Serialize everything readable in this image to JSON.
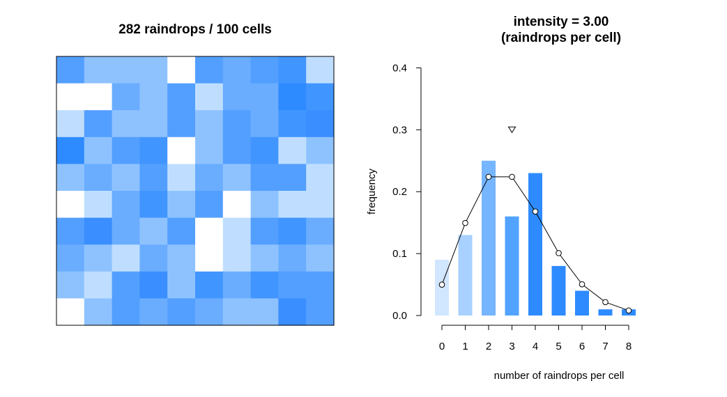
{
  "chart_data": [
    {
      "type": "heatmap",
      "title": "282 raindrops / 100 cells",
      "rows": 10,
      "cols": 10,
      "legend": "none",
      "palette": {
        "0": "#FFFFFF",
        "1": "#BFDEFF",
        "2": "#8EC2FF",
        "3": "#6AADFF",
        "4": "#539FFF",
        "5": "#4195FF",
        "6": "#3A8EFF",
        "7": "#2E8BFF",
        "8": "#2E8BFF"
      },
      "grid_counts": [
        [
          4,
          2,
          2,
          2,
          0,
          4,
          3,
          4,
          5,
          1
        ],
        [
          0,
          0,
          3,
          2,
          4,
          1,
          3,
          3,
          7,
          5
        ],
        [
          1,
          4,
          2,
          2,
          4,
          2,
          4,
          3,
          5,
          6
        ],
        [
          7,
          2,
          4,
          5,
          0,
          2,
          4,
          5,
          1,
          2
        ],
        [
          2,
          3,
          2,
          4,
          1,
          3,
          2,
          4,
          4,
          1
        ],
        [
          0,
          1,
          3,
          5,
          2,
          4,
          0,
          2,
          1,
          1
        ],
        [
          4,
          6,
          3,
          2,
          4,
          0,
          1,
          4,
          5,
          3
        ],
        [
          3,
          2,
          1,
          3,
          2,
          0,
          1,
          2,
          3,
          2
        ],
        [
          2,
          1,
          4,
          6,
          2,
          5,
          3,
          5,
          4,
          4
        ],
        [
          0,
          2,
          4,
          3,
          4,
          3,
          2,
          2,
          6,
          4
        ]
      ]
    },
    {
      "type": "bar",
      "title_line1": "intensity = 3.00",
      "title_line2": "(raindrops per cell)",
      "xlabel": "number of raindrops per cell",
      "ylabel": "frequency",
      "categories": [
        0,
        1,
        2,
        3,
        4,
        5,
        6,
        7,
        8
      ],
      "ylim": [
        0,
        0.4
      ],
      "yticks": [
        "0.0",
        "0.1",
        "0.2",
        "0.3",
        "0.4"
      ],
      "grid": false,
      "legend": "none",
      "series": [
        {
          "values": [
            0.09,
            0.13,
            0.25,
            0.16,
            0.23,
            0.08,
            0.04,
            0.01,
            0.01
          ],
          "colors": [
            "#D1E6FF",
            "#A9D1FF",
            "#76B5FF",
            "#52A3FF",
            "#2E8BFF",
            "#2E8BFF",
            "#2E8BFF",
            "#2E8BFF",
            "#2E8BFF"
          ]
        },
        {
          "type": "line",
          "marker": "open-circle",
          "values": [
            0.0498,
            0.1494,
            0.224,
            0.224,
            0.168,
            0.1008,
            0.0504,
            0.0216,
            0.0081
          ]
        }
      ],
      "mean_marker": {
        "x": 3.0,
        "y": 0.3,
        "shape": "down-triangle"
      }
    }
  ]
}
